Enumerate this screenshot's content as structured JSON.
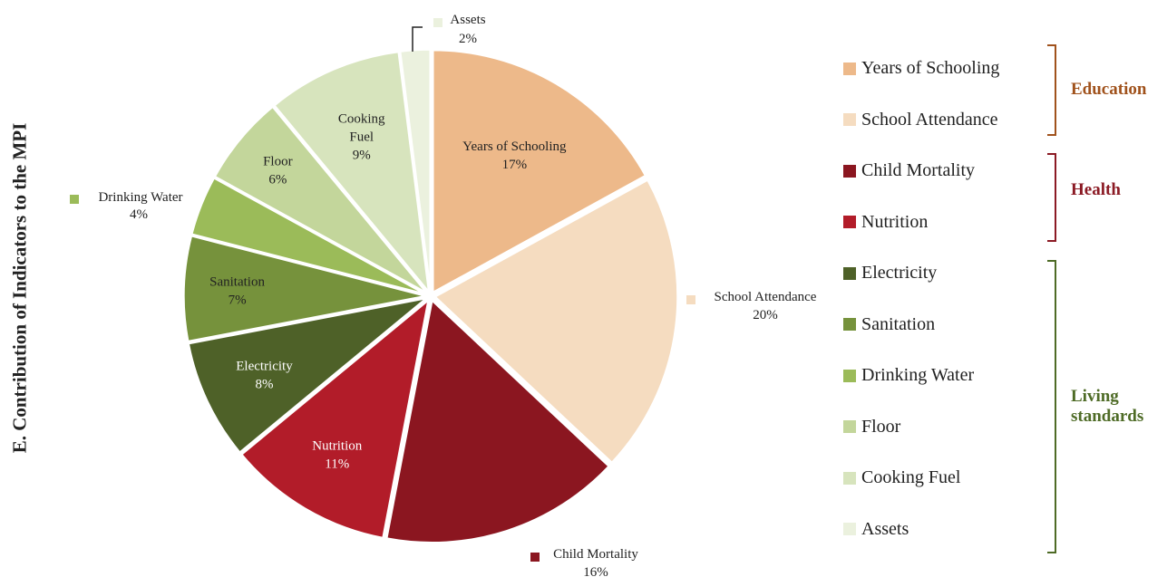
{
  "chart_data": {
    "type": "pie",
    "title": "E. Contribution of Indicators to the MPI",
    "slices": [
      {
        "label": "Years of Schooling",
        "value": 17,
        "pct_label": "17%",
        "color": "#EDB98A"
      },
      {
        "label": "School Attendance",
        "value": 20,
        "pct_label": "20%",
        "color": "#F5DCC0"
      },
      {
        "label": "Child Mortality",
        "value": 16,
        "pct_label": "16%",
        "color": "#8B1620"
      },
      {
        "label": "Nutrition",
        "value": 11,
        "pct_label": "11%",
        "color": "#B21C29"
      },
      {
        "label": "Electricity",
        "value": 8,
        "pct_label": "8%",
        "color": "#4E6128"
      },
      {
        "label": "Sanitation",
        "value": 7,
        "pct_label": "7%",
        "color": "#76923C"
      },
      {
        "label": "Drinking Water",
        "value": 4,
        "pct_label": "4%",
        "color": "#9BBB59"
      },
      {
        "label": "Floor",
        "value": 6,
        "pct_label": "6%",
        "color": "#C3D69B"
      },
      {
        "label": "Cooking Fuel",
        "value": 9,
        "pct_label": "9%",
        "color": "#D7E4BD"
      },
      {
        "label": "Assets",
        "value": 2,
        "pct_label": "2%",
        "color": "#EBF1DE"
      }
    ],
    "legend": {
      "position": "right",
      "items": [
        "Years of Schooling",
        "School Attendance",
        "Child Mortality",
        "Nutrition",
        "Electricity",
        "Sanitation",
        "Drinking Water",
        "Floor",
        "Cooking Fuel",
        "Assets"
      ],
      "groups": [
        {
          "label": "Education",
          "color": "#A0521C",
          "count": 2
        },
        {
          "label": "Health",
          "color": "#8B1A24",
          "count": 2
        },
        {
          "label": "Living standards",
          "color": "#4E6B26",
          "count": 6
        }
      ]
    }
  }
}
